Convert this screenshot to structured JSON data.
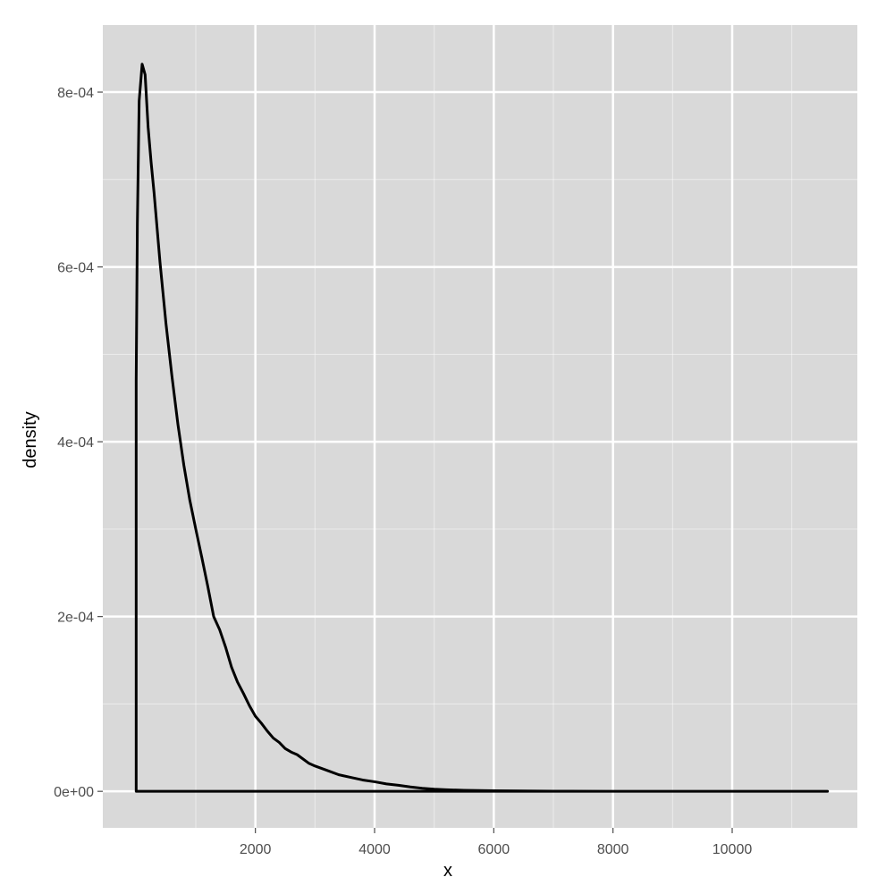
{
  "chart_data": {
    "type": "area",
    "title": "",
    "xlabel": "x",
    "ylabel": "density",
    "xlim": [
      -560,
      12100
    ],
    "ylim": [
      -4.175e-05,
      0.00087675
    ],
    "x_ticks": [
      2000,
      4000,
      6000,
      8000,
      10000
    ],
    "x_tick_labels": [
      "2000",
      "4000",
      "6000",
      "8000",
      "10000"
    ],
    "x_minor_ticks": [
      1000,
      3000,
      5000,
      7000,
      9000,
      11000
    ],
    "y_ticks": [
      0,
      0.0002,
      0.0004,
      0.0006,
      0.0008
    ],
    "y_tick_labels": [
      "0e+00",
      "2e-04",
      "4e-04",
      "6e-04",
      "8e-04"
    ],
    "y_minor_ticks": [
      0.0001,
      0.0003,
      0.0005,
      0.0007
    ],
    "grid": true,
    "colors": {
      "panel": "#d9d9d9",
      "grid": "#ffffff",
      "line": "#000000",
      "tick_text": "#4d4d4d"
    },
    "series": [
      {
        "x": [
          0,
          0,
          20,
          50,
          100,
          150,
          200,
          250,
          300,
          400,
          500,
          600,
          700,
          800,
          900,
          1000,
          1100,
          1200,
          1300,
          1400,
          1500,
          1600,
          1700,
          1800,
          1900,
          2000,
          2100,
          2200,
          2300,
          2400,
          2500,
          2600,
          2700,
          2800,
          2900,
          3000,
          3200,
          3400,
          3600,
          3800,
          4000,
          4200,
          4400,
          4600,
          4800,
          5000,
          5200,
          5500,
          6000,
          6500,
          7000,
          8000,
          9000,
          10000,
          11000,
          11600,
          11600
        ],
        "y": [
          0,
          0.00047,
          0.00065,
          0.00079,
          0.000832,
          0.00082,
          0.00076,
          0.00072,
          0.000685,
          0.000605,
          0.000535,
          0.000475,
          0.00042,
          0.000373,
          0.000333,
          0.0003,
          0.000268,
          0.000235,
          0.0002,
          0.000185,
          0.000165,
          0.000142,
          0.000125,
          0.000112,
          9.8e-05,
          8.6e-05,
          7.8e-05,
          6.9e-05,
          6.1e-05,
          5.6e-05,
          4.9e-05,
          4.5e-05,
          4.2e-05,
          3.7e-05,
          3.2e-05,
          2.9e-05,
          2.4e-05,
          1.9e-05,
          1.6e-05,
          1.3e-05,
          1.1e-05,
          8.5e-06,
          7e-06,
          5e-06,
          3.5e-06,
          2.5e-06,
          1.8e-06,
          1.2e-06,
          7e-07,
          4e-07,
          2e-07,
          1e-07,
          5e-08,
          2e-08,
          1e-08,
          0,
          0
        ]
      }
    ]
  }
}
